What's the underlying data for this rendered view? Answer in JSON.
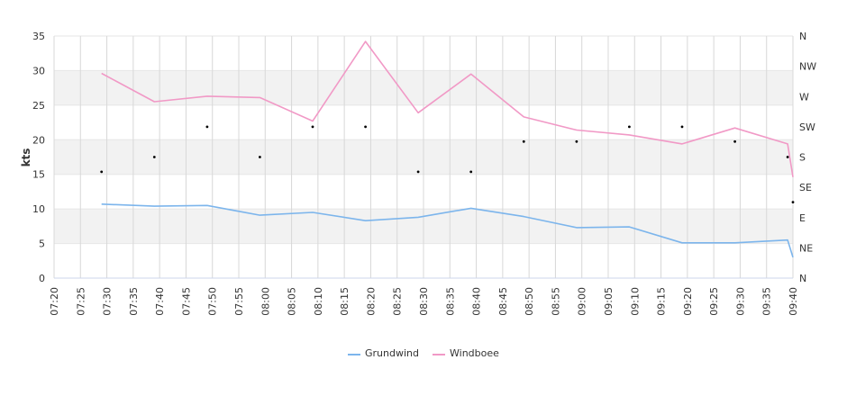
{
  "chart_data": {
    "type": "line",
    "ylabel": "kts",
    "ylim": [
      0,
      35
    ],
    "y_ticks": [
      "0",
      "5",
      "10",
      "15",
      "20",
      "25",
      "30",
      "35"
    ],
    "right_axis_ticks": [
      "N",
      "NE",
      "E",
      "SE",
      "S",
      "SW",
      "W",
      "NW",
      "N"
    ],
    "x_ticks": [
      "07:20",
      "07:25",
      "07:30",
      "07:35",
      "07:40",
      "07:45",
      "07:50",
      "07:55",
      "08:00",
      "08:05",
      "08:10",
      "08:15",
      "08:20",
      "08:25",
      "08:30",
      "08:35",
      "08:40",
      "08:45",
      "08:50",
      "08:55",
      "09:00",
      "09:05",
      "09:10",
      "09:15",
      "09:20",
      "09:25",
      "09:30",
      "09:35",
      "09:40"
    ],
    "grid": true,
    "legend_position": "bottom",
    "series": [
      {
        "name": "Grundwind",
        "color": "#7cb5ec",
        "x": [
          "07:29",
          "07:39",
          "07:49",
          "07:59",
          "08:09",
          "08:19",
          "08:29",
          "08:39",
          "08:49",
          "08:59",
          "09:09",
          "09:19",
          "09:29",
          "09:39",
          "09:40"
        ],
        "values": [
          10.7,
          10.4,
          10.5,
          9.1,
          9.5,
          8.3,
          8.8,
          10.1,
          8.9,
          7.3,
          7.4,
          5.1,
          5.1,
          5.5,
          3.0
        ]
      },
      {
        "name": "Windboee",
        "color": "#f199c6",
        "x": [
          "07:29",
          "07:39",
          "07:49",
          "07:59",
          "08:09",
          "08:19",
          "08:29",
          "08:39",
          "08:49",
          "08:59",
          "09:09",
          "09:19",
          "09:29",
          "09:39",
          "09:40"
        ],
        "values": [
          29.6,
          25.5,
          26.3,
          26.1,
          22.7,
          34.2,
          23.9,
          29.5,
          23.3,
          21.4,
          20.7,
          19.4,
          21.7,
          19.4,
          14.6
        ]
      }
    ],
    "wind_direction_deg": {
      "x": [
        "07:29",
        "07:39",
        "07:49",
        "07:59",
        "08:09",
        "08:19",
        "08:29",
        "08:39",
        "08:49",
        "08:59",
        "09:09",
        "09:19",
        "09:29",
        "09:39",
        "09:40"
      ],
      "values": [
        158,
        180,
        225,
        180,
        225,
        225,
        158,
        158,
        203,
        203,
        225,
        225,
        203,
        180,
        113
      ]
    }
  }
}
